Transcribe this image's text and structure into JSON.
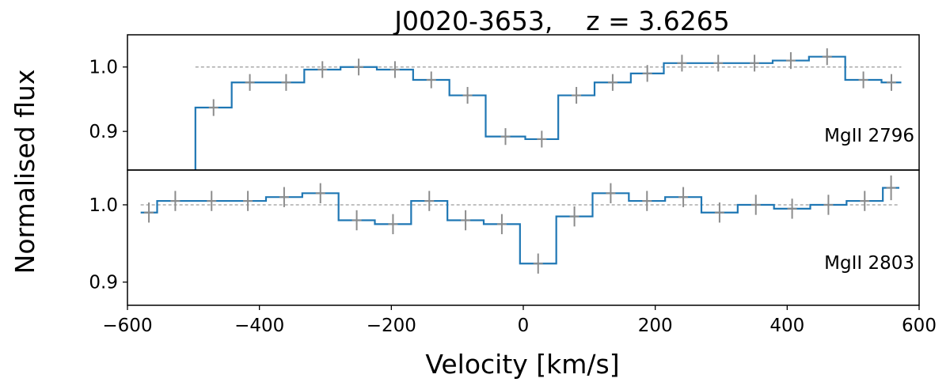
{
  "chart_data": {
    "type": "line",
    "title": "J0020-3653,    z = 3.6265",
    "xlabel": "Velocity [km/s]",
    "ylabel": "Normalised flux",
    "xlim": [
      -600,
      600
    ],
    "x_ticks": [
      -600,
      -400,
      -200,
      0,
      200,
      400,
      600
    ],
    "x_tick_labels": [
      "−600",
      "−400",
      "−200",
      "0",
      "200",
      "400",
      "600"
    ],
    "colors": {
      "step": "#1f77b4",
      "errorbar": "#8c8c8c",
      "reference": "#9a9a9a",
      "axes": "#000000"
    },
    "reference_level": 1.0,
    "panels": [
      {
        "label": "MgII 2796",
        "ylim": [
          0.84,
          1.05
        ],
        "y_ticks": [
          0.9,
          1.0
        ],
        "y_tick_labels": [
          "0.9",
          "1.0"
        ],
        "edges": [
          -497,
          -442,
          -387,
          -332,
          -277,
          -222,
          -167,
          -112,
          -57,
          3,
          53,
          108,
          163,
          213,
          268,
          323,
          378,
          433,
          488,
          543,
          573
        ],
        "flux": [
          0.937,
          0.976,
          0.976,
          0.996,
          1.0,
          0.996,
          0.98,
          0.956,
          0.892,
          0.888,
          0.956,
          0.976,
          0.99,
          1.006,
          1.006,
          1.006,
          1.01,
          1.016,
          0.98,
          0.976
        ],
        "error": [
          0.013,
          0.013,
          0.013,
          0.013,
          0.013,
          0.013,
          0.013,
          0.013,
          0.013,
          0.013,
          0.013,
          0.013,
          0.013,
          0.013,
          0.013,
          0.013,
          0.013,
          0.013,
          0.013,
          0.013
        ],
        "lead_in": {
          "x": -497,
          "from": 0.84
        }
      },
      {
        "label": "MgII 2803",
        "ylim": [
          0.87,
          1.045
        ],
        "y_ticks": [
          0.9,
          1.0
        ],
        "y_tick_labels": [
          "0.9",
          "1.0"
        ],
        "edges": [
          -580,
          -555,
          -500,
          -445,
          -390,
          -335,
          -280,
          -225,
          -170,
          -115,
          -60,
          -5,
          50,
          105,
          160,
          215,
          270,
          325,
          380,
          435,
          490,
          545,
          570
        ],
        "flux": [
          0.99,
          1.005,
          1.005,
          1.005,
          1.01,
          1.015,
          0.98,
          0.975,
          1.005,
          0.98,
          0.975,
          0.924,
          0.985,
          1.015,
          1.005,
          1.01,
          0.99,
          1.0,
          0.995,
          1.0,
          1.005,
          1.022
        ],
        "error": [
          0.013,
          0.013,
          0.013,
          0.013,
          0.013,
          0.013,
          0.013,
          0.013,
          0.013,
          0.013,
          0.013,
          0.013,
          0.013,
          0.013,
          0.013,
          0.013,
          0.013,
          0.013,
          0.013,
          0.013,
          0.013,
          0.016
        ]
      }
    ]
  }
}
